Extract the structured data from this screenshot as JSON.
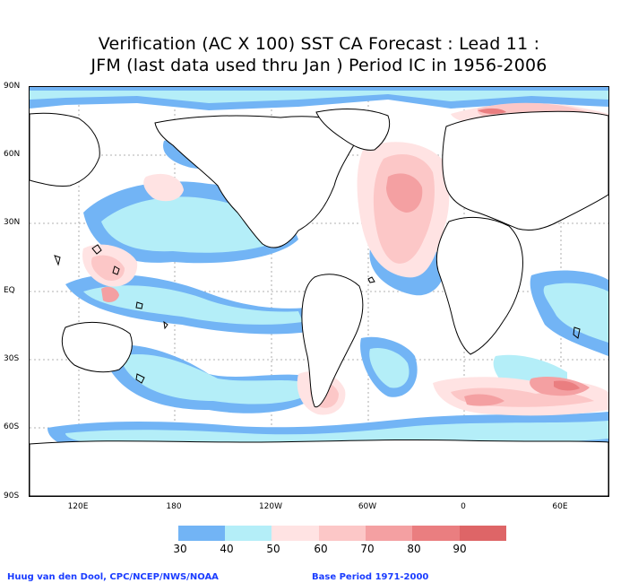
{
  "title_line1": "Verification (AC X 100) SST CA Forecast : Lead 11 :",
  "title_line2": "JFM (last data used thru Jan ) Period IC in 1956-2006",
  "lat_labels": [
    "90N",
    "60N",
    "30N",
    "EQ",
    "30S",
    "60S",
    "90S"
  ],
  "lon_labels": [
    "120E",
    "180",
    "120W",
    "60W",
    "0",
    "60E"
  ],
  "legend": {
    "labels": [
      "30",
      "40",
      "50",
      "60",
      "70",
      "80",
      "90"
    ],
    "colors": [
      "#72b4f5",
      "#b4eef8",
      "#ffe3e3",
      "#fcc7c7",
      "#f4a0a2",
      "#ea7e80",
      "#de6567"
    ]
  },
  "credit_left": "Huug van den Dool, CPC/NCEP/NWS/NOAA",
  "credit_right": "Base Period 1971-2000"
}
